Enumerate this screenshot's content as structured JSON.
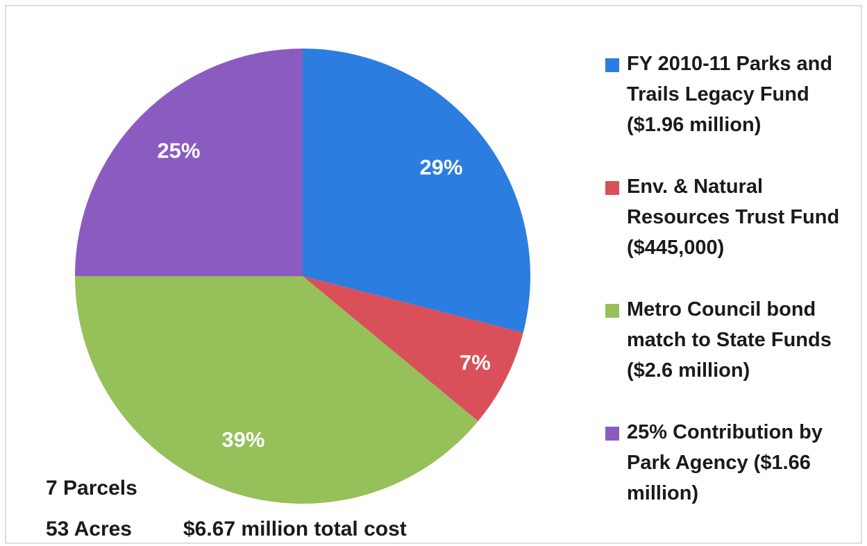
{
  "chart_data": {
    "type": "pie",
    "categories": [
      "FY 2010-11 Parks and Trails Legacy Fund ($1.96 million)",
      "Env. & Natural Resources Trust Fund ($445,000)",
      "Metro Council bond match to State Funds ($2.6 million)",
      "25% Contribution by Park Agency ($1.66 million)"
    ],
    "values": [
      29,
      7,
      39,
      25
    ],
    "value_labels": [
      "29%",
      "7%",
      "39%",
      "25%"
    ],
    "colors": [
      "#2b7de0",
      "#d9505a",
      "#96c05a",
      "#8a5cc0"
    ],
    "legend": "right",
    "annotations": [
      "7 Parcels",
      "53 Acres",
      "$6.67 million total cost"
    ]
  }
}
